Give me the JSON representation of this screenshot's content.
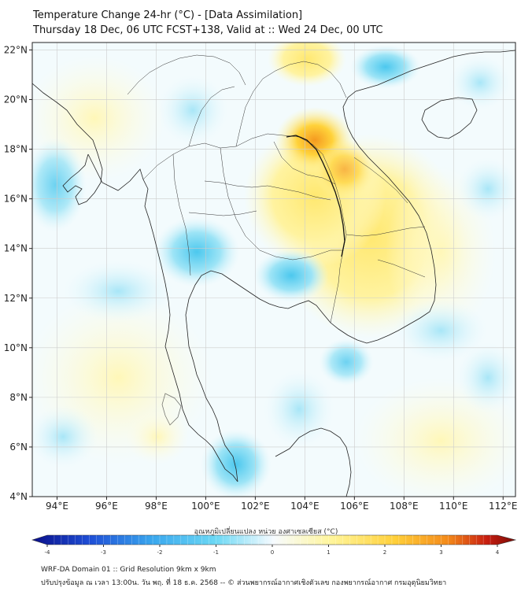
{
  "header": {
    "title": "Temperature Change 24-hr (°C) - [Data Assimilation]",
    "subtitle": "Thursday 18 Dec, 06 UTC FCST+138, Valid at :: Wed 24 Dec, 00 UTC"
  },
  "map": {
    "lat_labels": [
      "22°N",
      "20°N",
      "18°N",
      "16°N",
      "14°N",
      "12°N",
      "10°N",
      "8°N",
      "6°N",
      "4°N"
    ],
    "lat_values": [
      22,
      20,
      18,
      16,
      14,
      12,
      10,
      8,
      6,
      4
    ],
    "lon_labels": [
      "94°E",
      "96°E",
      "98°E",
      "100°E",
      "102°E",
      "104°E",
      "106°E",
      "108°E",
      "110°E",
      "112°E"
    ],
    "lon_values": [
      94,
      96,
      98,
      100,
      102,
      104,
      106,
      108,
      110,
      112
    ],
    "extent": {
      "lon_min": 93,
      "lon_max": 112.5,
      "lat_min": 4,
      "lat_max": 22.3
    }
  },
  "colorbar": {
    "label": "อุณหภูมิเปลี่ยนแปลง หน่วย องศาเซลเซียส (°C)",
    "ticks": [
      "-4",
      "-3",
      "-2",
      "-1",
      "0",
      "1",
      "2",
      "3",
      "4"
    ],
    "min": -4,
    "max": 4,
    "colors": [
      "#0a0f8a",
      "#1f4fd6",
      "#3aa8ee",
      "#6cd8f4",
      "#f7fbff",
      "#fff59a",
      "#ffd03a",
      "#f48a1a",
      "#c81e10",
      "#7a0b06"
    ]
  },
  "footer": {
    "line1": "WRF-DA Domain 01 :: Grid Resolution 9km x 9km",
    "line2": "ปรับปรุงข้อมูล ณ เวลา 13:00น. วัน พฤ. ที่ 18 ธ.ค. 2568 -- © ส่วนพยากรณ์อากาศเชิงตัวเลข กองพยากรณ์อากาศ กรมอุตุนิยมวิทยา"
  }
}
